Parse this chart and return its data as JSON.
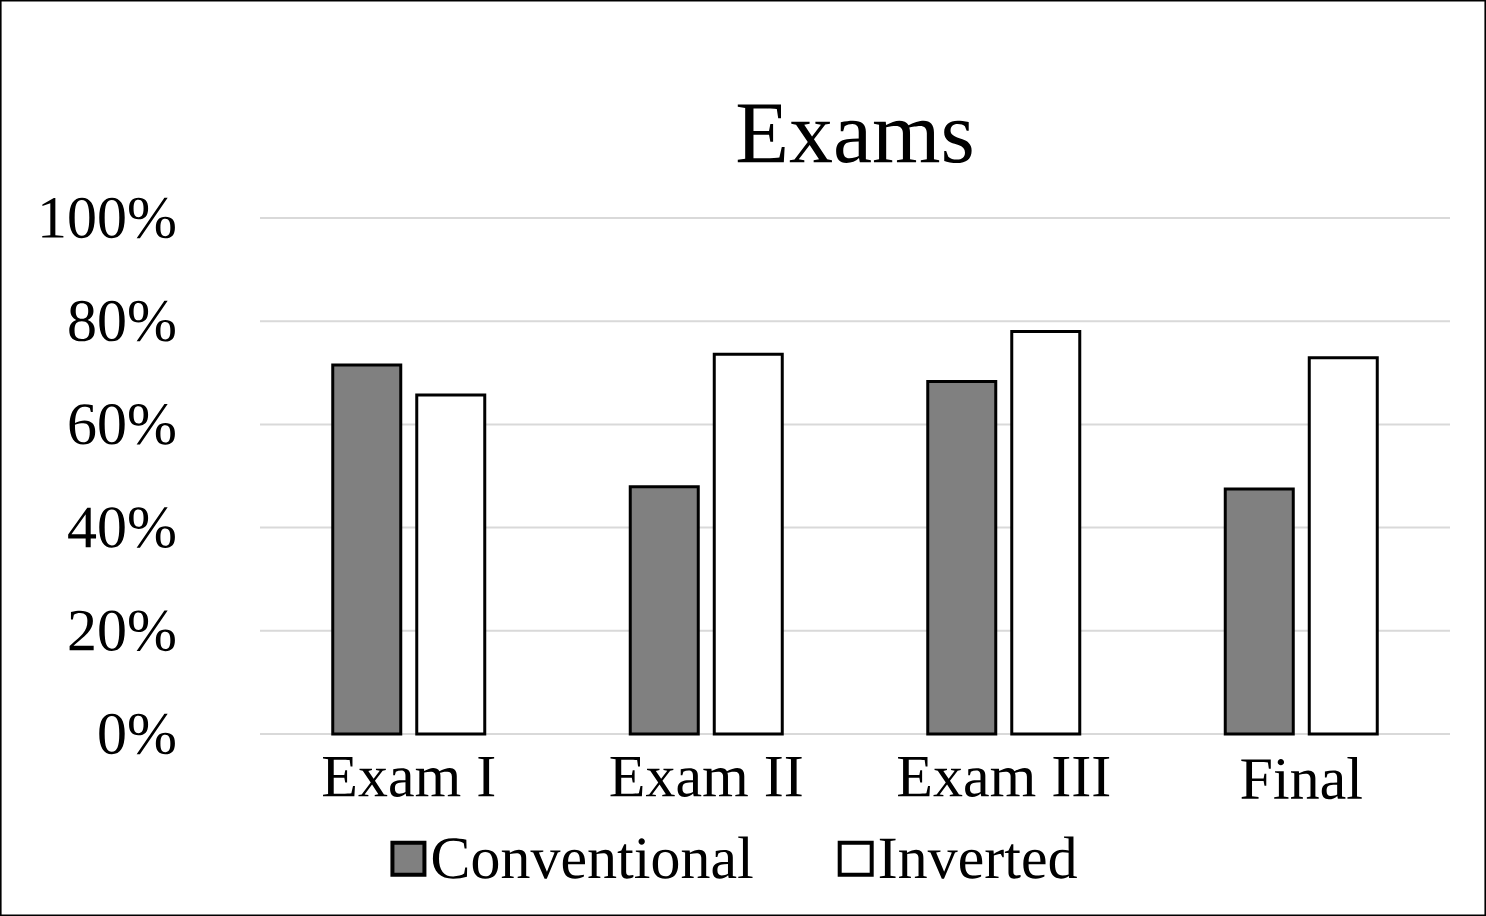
{
  "chart_data": {
    "type": "bar",
    "title": "Exams",
    "categories": [
      "Exam I",
      "Exam II",
      "Exam III",
      "Final"
    ],
    "series": [
      {
        "name": "Conventional",
        "color": "#808080",
        "values": [
          71.5,
          47.9,
          68.3,
          47.5
        ]
      },
      {
        "name": "Inverted",
        "color": "#ffffff",
        "values": [
          65.7,
          73.6,
          78,
          72.9
        ]
      }
    ],
    "ylim": [
      0,
      100
    ],
    "yticks": [
      {
        "value": 0,
        "label": "0%"
      },
      {
        "value": 20,
        "label": "20%"
      },
      {
        "value": 40,
        "label": "40%"
      },
      {
        "value": 60,
        "label": "60%"
      },
      {
        "value": 80,
        "label": "80%"
      },
      {
        "value": 100,
        "label": "100%"
      }
    ],
    "grid": "y",
    "legend": "bottom"
  }
}
